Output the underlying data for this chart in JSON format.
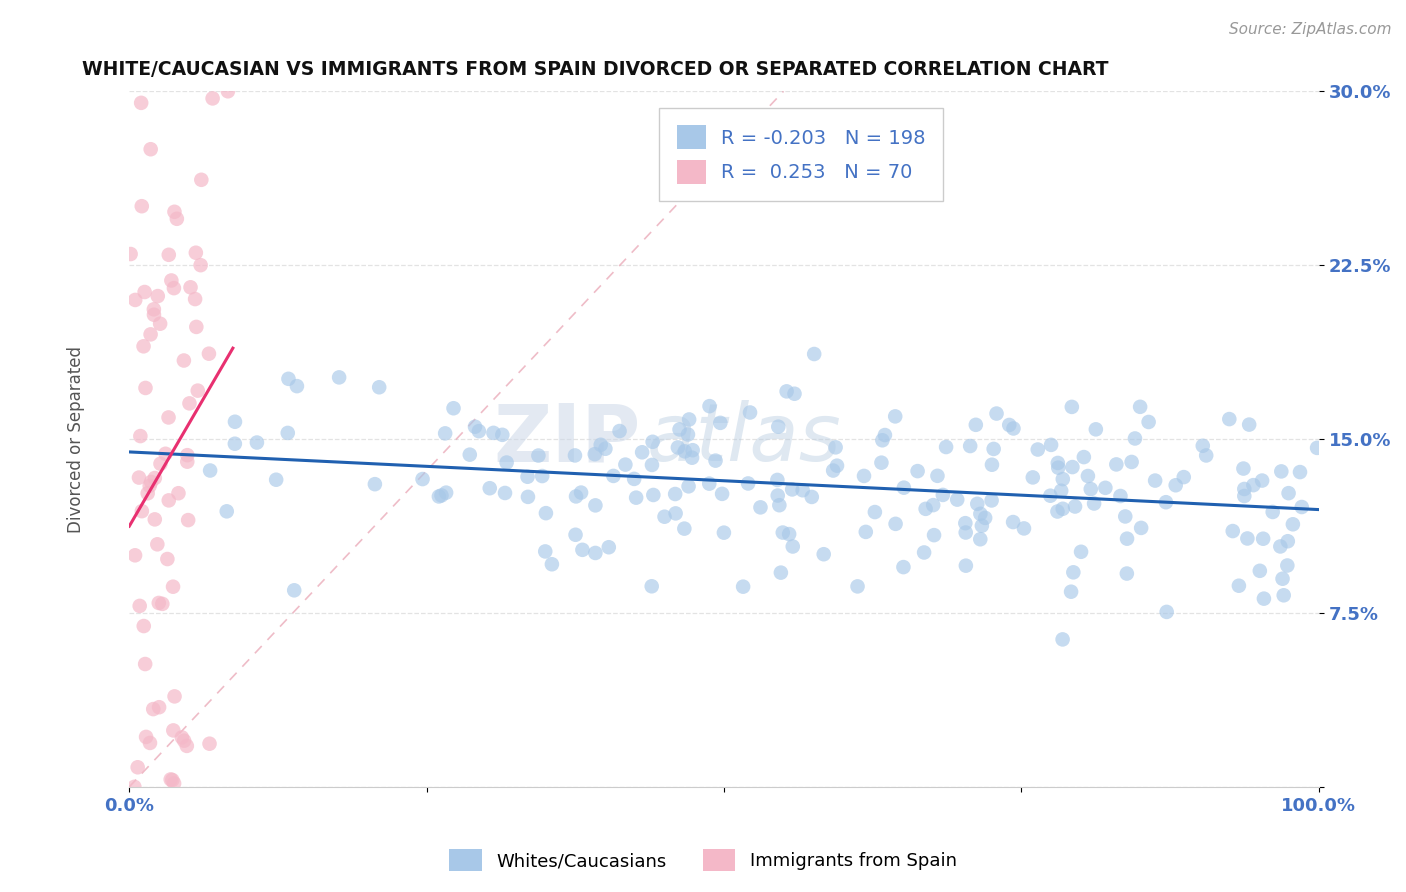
{
  "title": "WHITE/CAUCASIAN VS IMMIGRANTS FROM SPAIN DIVORCED OR SEPARATED CORRELATION CHART",
  "source_text": "Source: ZipAtlas.com",
  "ylabel": "Divorced or Separated",
  "legend_labels": [
    "Whites/Caucasians",
    "Immigrants from Spain"
  ],
  "blue_R": -0.203,
  "blue_N": 198,
  "pink_R": 0.253,
  "pink_N": 70,
  "blue_color": "#a8c8e8",
  "pink_color": "#f4b8c8",
  "blue_line_color": "#2060b0",
  "pink_line_color": "#e83070",
  "background_color": "#ffffff",
  "grid_color": "#e0e0e0",
  "xlim": [
    0,
    1.0
  ],
  "ylim": [
    0,
    0.3
  ],
  "xtick_labels": [
    "0.0%",
    "",
    "",
    "",
    "100.0%"
  ],
  "ytick_labels": [
    "",
    "7.5%",
    "15.0%",
    "22.5%",
    "30.0%"
  ],
  "watermark_zip": "ZIP",
  "watermark_atlas": "atlas",
  "title_color": "#111111",
  "axis_label_color": "#555555",
  "tick_label_color": "#4472c4",
  "legend_color": "#4472c4"
}
